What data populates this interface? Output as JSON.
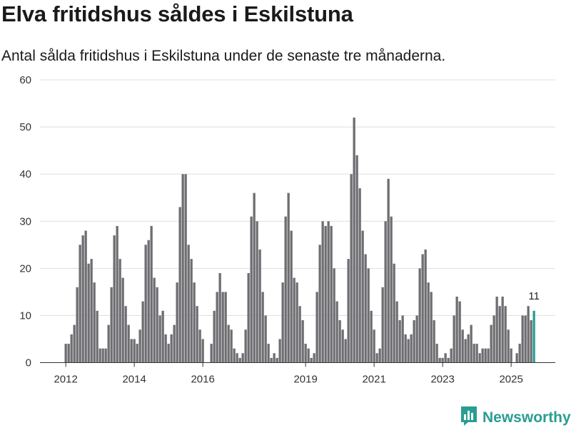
{
  "title": "Elva fritidshus såldes i Eskilstuna",
  "subtitle": "Antal sålda fritidshus i Eskilstuna under de senaste tre månaderna.",
  "brand": {
    "name": "Newsworthy",
    "color": "#2a9d91",
    "icon": "bar-chart-speech-bubble-icon"
  },
  "chart_data": {
    "type": "bar",
    "title": "Elva fritidshus såldes i Eskilstuna",
    "subtitle": "Antal sålda fritidshus i Eskilstuna under de senaste tre månaderna.",
    "xlabel": "",
    "ylabel": "",
    "ylim": [
      0,
      60
    ],
    "yticks": [
      0,
      10,
      20,
      30,
      40,
      50,
      60
    ],
    "xtick_labels": [
      "2012",
      "2014",
      "2016",
      "2019",
      "2021",
      "2023",
      "2025"
    ],
    "grid": true,
    "bar_color": "#6e6d71",
    "highlight_color": "#2a9d91",
    "highlight_label": "11",
    "categories": [
      "2012-01",
      "2012-02",
      "2012-03",
      "2012-04",
      "2012-05",
      "2012-06",
      "2012-07",
      "2012-08",
      "2012-09",
      "2012-10",
      "2012-11",
      "2012-12",
      "2013-01",
      "2013-02",
      "2013-03",
      "2013-04",
      "2013-05",
      "2013-06",
      "2013-07",
      "2013-08",
      "2013-09",
      "2013-10",
      "2013-11",
      "2013-12",
      "2014-01",
      "2014-02",
      "2014-03",
      "2014-04",
      "2014-05",
      "2014-06",
      "2014-07",
      "2014-08",
      "2014-09",
      "2014-10",
      "2014-11",
      "2014-12",
      "2015-01",
      "2015-02",
      "2015-03",
      "2015-04",
      "2015-05",
      "2015-06",
      "2015-07",
      "2015-08",
      "2015-09",
      "2015-10",
      "2015-11",
      "2015-12",
      "2016-01",
      "2016-02",
      "2016-03",
      "2016-04",
      "2016-05",
      "2016-06",
      "2016-07",
      "2016-08",
      "2016-09",
      "2016-10",
      "2016-11",
      "2016-12",
      "2017-01",
      "2017-02",
      "2017-03",
      "2017-04",
      "2017-05",
      "2017-06",
      "2017-07",
      "2017-08",
      "2017-09",
      "2017-10",
      "2017-11",
      "2017-12",
      "2018-01",
      "2018-02",
      "2018-03",
      "2018-04",
      "2018-05",
      "2018-06",
      "2018-07",
      "2018-08",
      "2018-09",
      "2018-10",
      "2018-11",
      "2018-12",
      "2019-01",
      "2019-02",
      "2019-03",
      "2019-04",
      "2019-05",
      "2019-06",
      "2019-07",
      "2019-08",
      "2019-09",
      "2019-10",
      "2019-11",
      "2019-12",
      "2020-01",
      "2020-02",
      "2020-03",
      "2020-04",
      "2020-05",
      "2020-06",
      "2020-07",
      "2020-08",
      "2020-09",
      "2020-10",
      "2020-11",
      "2020-12",
      "2021-01",
      "2021-02",
      "2021-03",
      "2021-04",
      "2021-05",
      "2021-06",
      "2021-07",
      "2021-08",
      "2021-09",
      "2021-10",
      "2021-11",
      "2021-12",
      "2022-01",
      "2022-02",
      "2022-03",
      "2022-04",
      "2022-05",
      "2022-06",
      "2022-07",
      "2022-08",
      "2022-09",
      "2022-10",
      "2022-11",
      "2022-12",
      "2023-01",
      "2023-02",
      "2023-03",
      "2023-04",
      "2023-05",
      "2023-06",
      "2023-07",
      "2023-08",
      "2023-09",
      "2023-10",
      "2023-11",
      "2023-12",
      "2024-01",
      "2024-02",
      "2024-03",
      "2024-04",
      "2024-05",
      "2024-06",
      "2024-07",
      "2024-08",
      "2024-09",
      "2024-10",
      "2024-11",
      "2024-12",
      "2025-01",
      "2025-02",
      "2025-03",
      "2025-04",
      "2025-05",
      "2025-06",
      "2025-07",
      "2025-08",
      "2025-09"
    ],
    "values": [
      4,
      4,
      6,
      8,
      16,
      25,
      27,
      28,
      21,
      22,
      17,
      11,
      3,
      3,
      3,
      8,
      16,
      27,
      29,
      22,
      18,
      12,
      8,
      5,
      5,
      4,
      7,
      13,
      25,
      26,
      29,
      18,
      16,
      10,
      11,
      6,
      4,
      6,
      8,
      17,
      33,
      40,
      40,
      25,
      22,
      17,
      12,
      7,
      5,
      0,
      0,
      4,
      11,
      15,
      19,
      15,
      15,
      8,
      7,
      3,
      2,
      1,
      2,
      7,
      19,
      31,
      36,
      30,
      24,
      15,
      10,
      4,
      1,
      2,
      1,
      5,
      17,
      31,
      36,
      28,
      18,
      17,
      12,
      9,
      4,
      3,
      1,
      2,
      15,
      25,
      30,
      29,
      30,
      29,
      20,
      13,
      9,
      7,
      5,
      22,
      40,
      52,
      44,
      37,
      28,
      23,
      20,
      11,
      7,
      2,
      3,
      16,
      30,
      39,
      31,
      21,
      13,
      9,
      10,
      6,
      5,
      6,
      9,
      10,
      20,
      23,
      24,
      17,
      15,
      9,
      4,
      1,
      1,
      2,
      1,
      3,
      10,
      14,
      13,
      7,
      5,
      6,
      8,
      4,
      4,
      2,
      3,
      3,
      3,
      8,
      10,
      14,
      12,
      14,
      12,
      7,
      3,
      0,
      2,
      4,
      10,
      10,
      12,
      9,
      11
    ]
  }
}
